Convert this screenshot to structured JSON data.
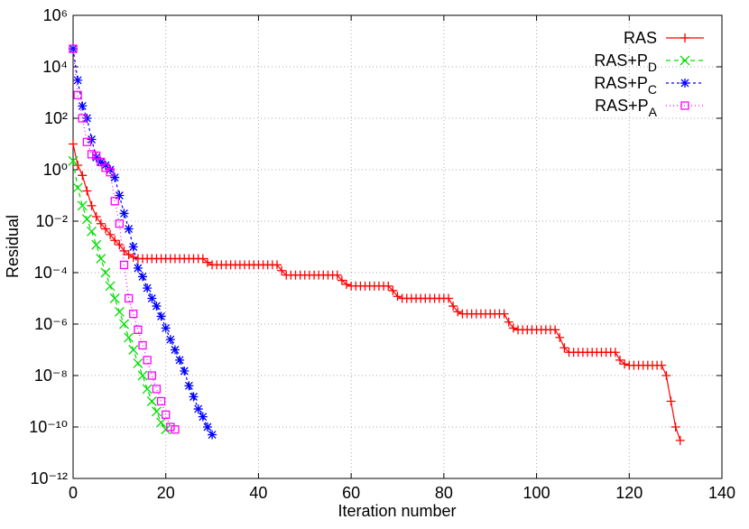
{
  "chart_data": {
    "type": "line",
    "xlabel": "Iteration number",
    "ylabel": "Residual",
    "xlim": [
      0,
      140
    ],
    "xticks": [
      0,
      20,
      40,
      60,
      80,
      100,
      120,
      140
    ],
    "ylim": [
      1e-12,
      1000000
    ],
    "log_y": true,
    "grid": true,
    "legend": "top-right",
    "yticks": [
      {
        "value": 1e-12,
        "label": "10⁻¹²"
      },
      {
        "value": 1e-10,
        "label": "10⁻¹⁰"
      },
      {
        "value": 1e-08,
        "label": "10⁻⁸"
      },
      {
        "value": 1e-06,
        "label": "10⁻⁶"
      },
      {
        "value": 0.0001,
        "label": "10⁻⁴"
      },
      {
        "value": 0.01,
        "label": "10⁻²"
      },
      {
        "value": 1,
        "label": "10⁰"
      },
      {
        "value": 100,
        "label": "10²"
      },
      {
        "value": 10000,
        "label": "10⁴"
      },
      {
        "value": 1000000,
        "label": "10⁶"
      }
    ],
    "series": [
      {
        "name": "RAS",
        "color": "#ff0000",
        "marker": "plus",
        "dash": "none",
        "x": [
          0,
          1,
          2,
          3,
          4,
          5,
          6,
          7,
          8,
          9,
          10,
          11,
          12,
          13,
          14,
          15,
          16,
          17,
          18,
          19,
          20,
          21,
          22,
          23,
          24,
          25,
          26,
          27,
          28,
          29,
          30,
          31,
          32,
          33,
          34,
          35,
          36,
          37,
          38,
          39,
          40,
          41,
          42,
          43,
          44,
          45,
          46,
          47,
          48,
          49,
          50,
          51,
          52,
          53,
          54,
          55,
          56,
          57,
          58,
          59,
          60,
          61,
          62,
          63,
          64,
          65,
          66,
          67,
          68,
          69,
          70,
          71,
          72,
          73,
          74,
          75,
          76,
          77,
          78,
          79,
          80,
          81,
          82,
          83,
          84,
          85,
          86,
          87,
          88,
          89,
          90,
          91,
          92,
          93,
          94,
          95,
          96,
          97,
          98,
          99,
          100,
          101,
          102,
          103,
          104,
          105,
          106,
          107,
          108,
          109,
          110,
          111,
          112,
          113,
          114,
          115,
          116,
          117,
          118,
          119,
          120,
          121,
          122,
          123,
          124,
          125,
          126,
          127,
          128,
          129,
          130,
          131
        ],
        "values": [
          10,
          1.5,
          0.6,
          0.15,
          0.04,
          0.015,
          0.008,
          0.005,
          0.003,
          0.0018,
          0.0012,
          0.0007,
          0.0005,
          0.0004,
          0.00035,
          0.00035,
          0.00035,
          0.00035,
          0.00035,
          0.00035,
          0.00035,
          0.00035,
          0.00035,
          0.00035,
          0.00035,
          0.00035,
          0.00035,
          0.00035,
          0.00035,
          0.00025,
          0.0002,
          0.0002,
          0.0002,
          0.0002,
          0.0002,
          0.0002,
          0.0002,
          0.0002,
          0.0002,
          0.0002,
          0.0002,
          0.0002,
          0.0002,
          0.0002,
          0.0002,
          0.00012,
          8e-05,
          8e-05,
          8e-05,
          8e-05,
          8e-05,
          8e-05,
          8e-05,
          8e-05,
          8e-05,
          8e-05,
          8e-05,
          8e-05,
          5e-05,
          3.5e-05,
          3e-05,
          3e-05,
          3e-05,
          3e-05,
          3e-05,
          3e-05,
          3e-05,
          3e-05,
          3e-05,
          2e-05,
          1.2e-05,
          1e-05,
          1e-05,
          1e-05,
          1e-05,
          1e-05,
          1e-05,
          1e-05,
          1e-05,
          1e-05,
          1e-05,
          1e-05,
          5e-06,
          3e-06,
          2.5e-06,
          2.5e-06,
          2.5e-06,
          2.5e-06,
          2.5e-06,
          2.5e-06,
          2.5e-06,
          2.5e-06,
          2.5e-06,
          2.5e-06,
          1.2e-06,
          7e-07,
          6e-07,
          6e-07,
          6e-07,
          6e-07,
          6e-07,
          6e-07,
          6e-07,
          6e-07,
          6e-07,
          3e-07,
          1.2e-07,
          8e-08,
          8e-08,
          8e-08,
          8e-08,
          8e-08,
          8e-08,
          8e-08,
          8e-08,
          8e-08,
          8e-08,
          8e-08,
          4e-08,
          2.8e-08,
          2.5e-08,
          2.5e-08,
          2.5e-08,
          2.5e-08,
          2.5e-08,
          2.5e-08,
          2.5e-08,
          2.5e-08,
          1e-08,
          1e-09,
          1e-10,
          3e-11
        ]
      },
      {
        "name": "RAS+PD",
        "color": "#00dd00",
        "marker": "cross",
        "dash": "5,4",
        "x": [
          0,
          1,
          2,
          3,
          4,
          5,
          6,
          7,
          8,
          9,
          10,
          11,
          12,
          13,
          14,
          15,
          16,
          17,
          18,
          19,
          20
        ],
        "values": [
          2.2,
          0.2,
          0.04,
          0.012,
          0.004,
          0.0012,
          0.00035,
          0.0001,
          3e-05,
          1e-05,
          3e-06,
          1e-06,
          3e-07,
          1e-07,
          3e-08,
          1e-08,
          3e-09,
          1e-09,
          4e-10,
          1.5e-10,
          8e-11
        ]
      },
      {
        "name": "RAS+PC",
        "color": "#0000ff",
        "marker": "star",
        "dash": "3,3",
        "x": [
          0,
          1,
          2,
          3,
          4,
          5,
          6,
          7,
          8,
          9,
          10,
          11,
          12,
          13,
          14,
          15,
          16,
          17,
          18,
          19,
          20,
          21,
          22,
          23,
          24,
          25,
          26,
          27,
          28,
          29,
          30
        ],
        "values": [
          50000,
          3000,
          300,
          100,
          15,
          3,
          2,
          1.5,
          1,
          0.5,
          0.1,
          0.02,
          0.005,
          0.001,
          0.00015,
          7e-05,
          2.5e-05,
          1e-05,
          5e-06,
          2e-06,
          7e-07,
          2.5e-07,
          1e-07,
          4e-08,
          1.5e-08,
          4e-09,
          1.5e-09,
          5e-10,
          2.5e-10,
          1e-10,
          5e-11
        ]
      },
      {
        "name": "RAS+PA",
        "color": "#ff00ff",
        "marker": "square",
        "dash": "1,3",
        "x": [
          0,
          1,
          2,
          3,
          4,
          5,
          6,
          7,
          8,
          9,
          10,
          11,
          12,
          13,
          14,
          15,
          16,
          17,
          18,
          19,
          20,
          21,
          22
        ],
        "values": [
          50000,
          800,
          100,
          12,
          4,
          3.5,
          2,
          1.2,
          0.8,
          0.06,
          0.008,
          0.0002,
          1e-05,
          2.5e-06,
          6e-07,
          1.5e-07,
          4e-08,
          1e-08,
          3e-09,
          1e-09,
          3e-10,
          1e-10,
          8e-11
        ]
      }
    ]
  }
}
